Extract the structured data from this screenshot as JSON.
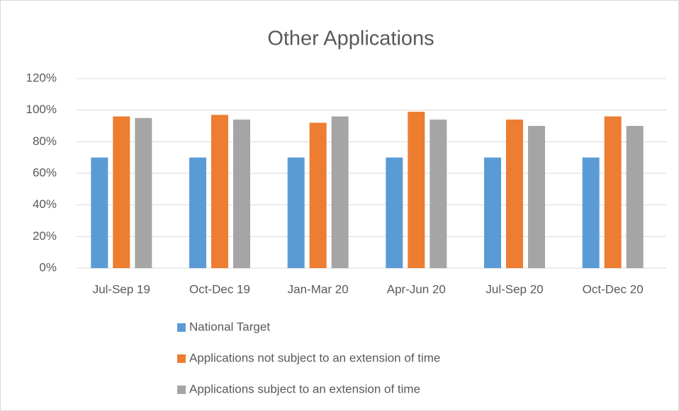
{
  "chart_data": {
    "type": "bar",
    "title": "Other Applications",
    "categories": [
      "Jul-Sep 19",
      "Oct-Dec 19",
      "Jan-Mar 20",
      "Apr-Jun 20",
      "Jul-Sep 20",
      "Oct-Dec 20"
    ],
    "series": [
      {
        "name": "National Target",
        "color": "#5b9bd5",
        "values": [
          70,
          70,
          70,
          70,
          70,
          70
        ]
      },
      {
        "name": "Applications not subject to an extension of time",
        "color": "#ed7d31",
        "values": [
          96,
          97,
          92,
          99,
          94,
          96
        ]
      },
      {
        "name": "Applications subject to an extension of time",
        "color": "#a5a5a5",
        "values": [
          95,
          94,
          96,
          94,
          90,
          90
        ]
      }
    ],
    "ylim": [
      0,
      120
    ],
    "yticks": [
      {
        "value": 0,
        "label": "0%"
      },
      {
        "value": 20,
        "label": "20%"
      },
      {
        "value": 40,
        "label": "40%"
      },
      {
        "value": 60,
        "label": "60%"
      },
      {
        "value": 80,
        "label": "80%"
      },
      {
        "value": 100,
        "label": "100%"
      },
      {
        "value": 120,
        "label": "120%"
      }
    ],
    "grid": true,
    "legend": "bottom"
  }
}
